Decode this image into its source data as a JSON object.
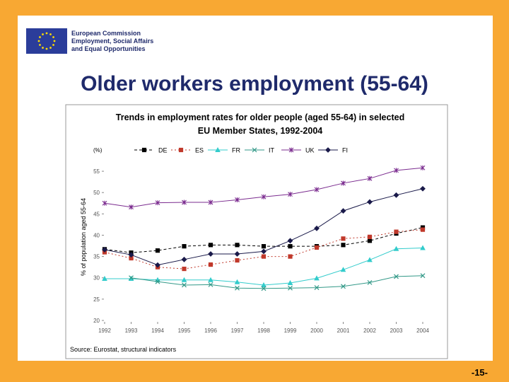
{
  "header": {
    "lines": [
      "European Commission",
      "Employment, Social Affairs",
      "and Equal Opportunities"
    ]
  },
  "slide_title": "Older workers employment (55-64)",
  "chart_data": {
    "type": "line",
    "title": "Trends in employment rates for older people (aged 55-64) in selected",
    "subtitle": "EU Member States, 1992-2004",
    "unit_label": "(%)",
    "y_label": "% of population aged 55-64",
    "source": "Source: Eurostat, structural indicators",
    "x": [
      1992,
      1993,
      1994,
      1995,
      1996,
      1997,
      1998,
      1999,
      2000,
      2001,
      2002,
      2003,
      2004
    ],
    "xlim": [
      1992,
      2004
    ],
    "xticks": [
      1992,
      1993,
      1994,
      1995,
      1996,
      1997,
      1998,
      1999,
      2000,
      2001,
      2002,
      2003,
      2004
    ],
    "ylim": [
      20,
      57.5
    ],
    "yticks": [
      20,
      25,
      30,
      35,
      40,
      45,
      50,
      55
    ],
    "series": [
      {
        "name": "DE",
        "color": "#000000",
        "dash": "4,3",
        "marker": "square",
        "values": [
          36.7,
          35.9,
          36.4,
          37.4,
          37.7,
          37.7,
          37.4,
          37.4,
          37.4,
          37.7,
          38.7,
          40.4,
          41.8
        ]
      },
      {
        "name": "ES",
        "color": "#c0392b",
        "dash": "2,3",
        "marker": "square",
        "values": [
          36.0,
          34.6,
          32.5,
          32.1,
          33.1,
          34.1,
          35.0,
          35.0,
          37.1,
          39.2,
          39.6,
          40.8,
          41.3
        ]
      },
      {
        "name": "FR",
        "color": "#33cccc",
        "dash": "",
        "marker": "triangle",
        "values": [
          29.8,
          29.8,
          29.5,
          29.5,
          29.5,
          29.0,
          28.3,
          28.8,
          29.9,
          31.9,
          34.2,
          36.8,
          37.0
        ]
      },
      {
        "name": "IT",
        "color": "#339988",
        "dash": "",
        "marker": "x",
        "values": [
          null,
          30.0,
          29.1,
          28.3,
          28.4,
          27.6,
          27.5,
          27.6,
          27.7,
          28.0,
          28.9,
          30.3,
          30.5
        ]
      },
      {
        "name": "UK",
        "color": "#7b2c8f",
        "dash": "",
        "marker": "star",
        "values": [
          47.5,
          46.6,
          47.6,
          47.7,
          47.7,
          48.3,
          49.0,
          49.6,
          50.7,
          52.2,
          53.3,
          55.2,
          55.8
        ]
      },
      {
        "name": "FI",
        "color": "#1a1a4a",
        "dash": "",
        "marker": "diamond",
        "values": [
          36.6,
          35.4,
          33.0,
          34.3,
          35.6,
          35.6,
          36.2,
          38.7,
          41.6,
          45.7,
          47.8,
          49.4,
          50.9
        ]
      }
    ]
  },
  "page_number": "-15-"
}
